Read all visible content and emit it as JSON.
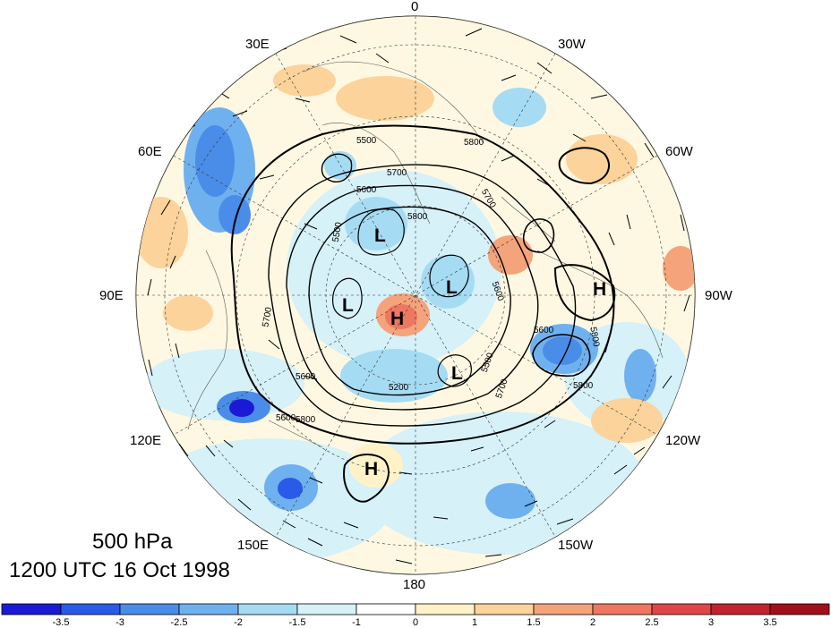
{
  "caption": {
    "level": "500 hPa",
    "time": "1200 UTC 16 Oct 1998"
  },
  "meridian_labels": {
    "m0": "0",
    "m30w": "30W",
    "m60w": "60W",
    "m90w": "90W",
    "m120w": "120W",
    "m150w": "150W",
    "m180": "180",
    "m150e": "150E",
    "m120e": "120E",
    "m90e": "90E",
    "m60e": "60E",
    "m30e": "30E"
  },
  "contour_labels": [
    "5500",
    "5800",
    "5700",
    "5600",
    "5500",
    "5700",
    "5800",
    "5600",
    "5800",
    "5600",
    "5600",
    "5700",
    "5500",
    "5200",
    "5600",
    "5800",
    "5700",
    "5800"
  ],
  "pressure_systems": [
    "L",
    "L",
    "L",
    "L",
    "H",
    "H",
    "H"
  ],
  "colorbar": {
    "tick_labels": [
      "-3.5",
      "-3",
      "-2.5",
      "-2",
      "-1.5",
      "-1",
      "0",
      "1",
      "1.5",
      "2",
      "2.5",
      "3",
      "3.5"
    ],
    "colors": [
      "#1a1ad6",
      "#2a5ae8",
      "#4a8de8",
      "#6fb1ef",
      "#a6dcf3",
      "#d6f1f8",
      "#ffffff",
      "#fff2c8",
      "#fbd39b",
      "#f5a37a",
      "#ef7761",
      "#e04646",
      "#c0222e",
      "#a0101a"
    ]
  }
}
